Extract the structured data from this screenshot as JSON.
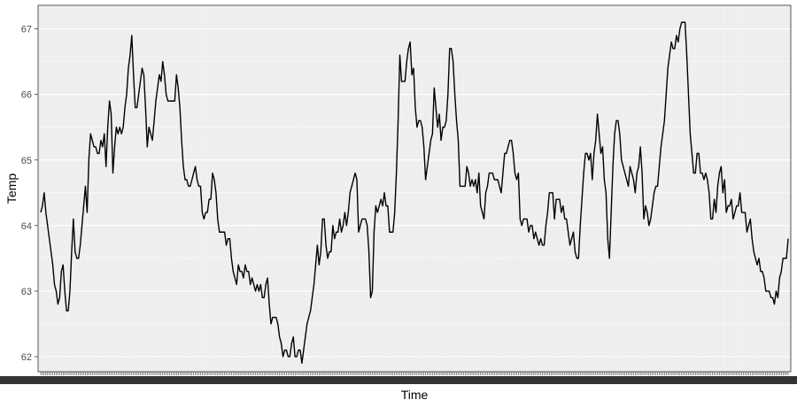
{
  "chart_data": {
    "type": "line",
    "title": "",
    "xlabel": "Time",
    "ylabel": "Temp",
    "ylim": [
      61.77,
      67.36
    ],
    "yticks": [
      62,
      63,
      64,
      65,
      66,
      67
    ],
    "x_tick_labels_legible": false,
    "grid": true,
    "legend": "none",
    "colors": {
      "panel_background": "#ebebeb",
      "grid_major": "#ffffff",
      "line": "#000000",
      "axis_text": "#4d4d4d"
    },
    "series": [
      {
        "values": [
          64.2,
          64.3,
          64.5,
          64.2,
          64.0,
          63.8,
          63.6,
          63.4,
          63.1,
          63.0,
          62.8,
          62.9,
          63.3,
          63.4,
          63.0,
          62.7,
          62.7,
          63.0,
          63.6,
          64.1,
          63.6,
          63.5,
          63.5,
          63.7,
          64.0,
          64.3,
          64.6,
          64.2,
          65.0,
          65.4,
          65.3,
          65.2,
          65.2,
          65.1,
          65.1,
          65.3,
          65.2,
          65.4,
          64.9,
          65.5,
          65.9,
          65.7,
          64.8,
          65.2,
          65.5,
          65.4,
          65.5,
          65.4,
          65.5,
          65.8,
          66.0,
          66.4,
          66.6,
          66.9,
          66.3,
          65.8,
          65.8,
          66.0,
          66.2,
          66.4,
          66.3,
          65.8,
          65.2,
          65.5,
          65.4,
          65.3,
          65.6,
          65.9,
          66.1,
          66.3,
          66.2,
          66.5,
          66.3,
          66.0,
          65.9,
          65.9,
          65.9,
          65.9,
          65.9,
          66.3,
          66.1,
          65.8,
          65.3,
          64.9,
          64.7,
          64.7,
          64.6,
          64.6,
          64.7,
          64.8,
          64.9,
          64.7,
          64.6,
          64.6,
          64.2,
          64.1,
          64.2,
          64.2,
          64.4,
          64.4,
          64.8,
          64.7,
          64.5,
          64.1,
          63.9,
          63.9,
          63.9,
          63.9,
          63.7,
          63.8,
          63.8,
          63.5,
          63.3,
          63.2,
          63.1,
          63.4,
          63.3,
          63.3,
          63.2,
          63.4,
          63.3,
          63.3,
          63.1,
          63.2,
          63.1,
          63.0,
          63.1,
          63.0,
          63.1,
          62.9,
          62.9,
          63.1,
          63.2,
          62.8,
          62.5,
          62.6,
          62.6,
          62.6,
          62.5,
          62.3,
          62.2,
          62.0,
          62.1,
          62.1,
          62.0,
          62.0,
          62.2,
          62.3,
          62.0,
          62.0,
          62.1,
          62.1,
          61.9,
          62.1,
          62.3,
          62.5,
          62.6,
          62.7,
          62.9,
          63.1,
          63.4,
          63.7,
          63.4,
          63.6,
          64.1,
          64.1,
          63.7,
          63.5,
          63.6,
          63.6,
          64.0,
          63.8,
          63.9,
          63.9,
          64.1,
          63.9,
          64.0,
          64.2,
          64.0,
          64.2,
          64.5,
          64.6,
          64.7,
          64.8,
          64.7,
          63.9,
          64.0,
          64.1,
          64.1,
          64.1,
          64.0,
          63.6,
          62.9,
          63.0,
          63.9,
          64.3,
          64.2,
          64.3,
          64.4,
          64.3,
          64.5,
          64.3,
          64.3,
          63.9,
          63.9,
          63.9,
          64.2,
          64.8,
          65.6,
          66.6,
          66.2,
          66.2,
          66.2,
          66.5,
          66.7,
          66.8,
          66.3,
          66.4,
          65.8,
          65.5,
          65.6,
          65.6,
          65.5,
          65.2,
          64.7,
          64.9,
          65.1,
          65.3,
          65.4,
          66.1,
          65.8,
          65.5,
          65.7,
          65.3,
          65.5,
          65.5,
          65.6,
          66.0,
          66.7,
          66.7,
          66.5,
          66.0,
          65.6,
          65.3,
          64.6,
          64.6,
          64.6,
          64.6,
          64.9,
          64.8,
          64.6,
          64.7,
          64.6,
          64.7,
          64.5,
          64.8,
          64.3,
          64.2,
          64.1,
          64.5,
          64.6,
          64.8,
          64.8,
          64.8,
          64.7,
          64.7,
          64.7,
          64.6,
          64.5,
          64.8,
          65.1,
          65.1,
          65.2,
          65.3,
          65.3,
          65.1,
          64.8,
          64.7,
          64.8,
          64.1,
          64.0,
          64.1,
          64.1,
          64.1,
          63.9,
          64.0,
          64.0,
          63.8,
          63.9,
          63.8,
          63.7,
          63.8,
          63.7,
          63.7,
          64.0,
          64.2,
          64.5,
          64.5,
          64.5,
          64.1,
          64.4,
          64.4,
          64.4,
          64.2,
          64.3,
          64.1,
          64.1,
          63.9,
          63.7,
          63.8,
          63.9,
          63.6,
          63.5,
          63.5,
          64.0,
          64.4,
          64.8,
          65.1,
          65.1,
          65.0,
          65.1,
          64.7,
          65.1,
          65.3,
          65.7,
          65.4,
          65.1,
          65.2,
          64.7,
          64.5,
          63.8,
          63.5,
          64.2,
          64.9,
          65.4,
          65.6,
          65.6,
          65.4,
          65.0,
          64.9,
          64.8,
          64.7,
          64.6,
          64.9,
          64.8,
          64.7,
          64.5,
          64.8,
          64.9,
          65.2,
          64.8,
          64.1,
          64.3,
          64.2,
          64.0,
          64.1,
          64.3,
          64.5,
          64.6,
          64.6,
          64.9,
          65.2,
          65.4,
          65.6,
          66.0,
          66.4,
          66.6,
          66.8,
          66.7,
          66.7,
          66.9,
          66.8,
          67.0,
          67.1,
          67.1,
          67.1,
          66.6,
          66.0,
          65.4,
          65.1,
          64.8,
          64.8,
          65.1,
          65.1,
          64.8,
          64.8,
          64.7,
          64.8,
          64.7,
          64.5,
          64.1,
          64.1,
          64.4,
          64.2,
          64.6,
          64.8,
          64.9,
          64.5,
          64.7,
          64.2,
          64.3,
          64.3,
          64.4,
          64.1,
          64.2,
          64.3,
          64.3,
          64.5,
          64.2,
          64.2,
          64.2,
          63.9,
          64.0,
          64.1,
          63.8,
          63.6,
          63.5,
          63.4,
          63.5,
          63.3,
          63.3,
          63.2,
          63.0,
          63.0,
          63.0,
          62.9,
          62.9,
          62.8,
          63.0,
          62.9,
          63.2,
          63.3,
          63.5,
          63.5,
          63.5,
          63.8
        ]
      }
    ]
  }
}
